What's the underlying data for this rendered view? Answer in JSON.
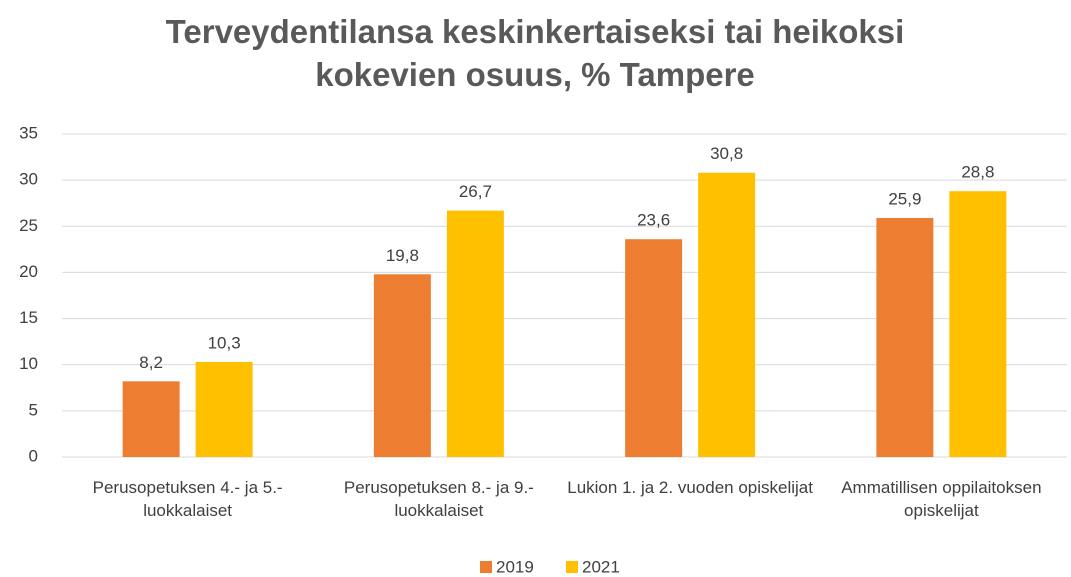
{
  "chart_data": {
    "type": "bar",
    "title": "Terveydentilansa keskinkertaiseksi tai heikoksi kokevien osuus, % Tampere",
    "categories": [
      "Perusopetuksen 4.- ja 5.-luokkalaiset",
      "Perusopetuksen 8.- ja 9.-luokkalaiset",
      "Lukion 1. ja 2. vuoden opiskelijat",
      "Ammatillisen oppilaitoksen opiskelijat"
    ],
    "series": [
      {
        "name": "2019",
        "color": "#ed7d31",
        "values": [
          8.2,
          19.8,
          23.6,
          25.9
        ],
        "value_labels": [
          "8,2",
          "19,8",
          "23,6",
          "25,9"
        ]
      },
      {
        "name": "2021",
        "color": "#ffc000",
        "values": [
          10.3,
          26.7,
          30.8,
          28.8
        ],
        "value_labels": [
          "10,3",
          "26,7",
          "30,8",
          "28,8"
        ]
      }
    ],
    "ylim": [
      0,
      35
    ],
    "yticks": [
      0,
      5,
      10,
      15,
      20,
      25,
      30,
      35
    ],
    "grid": true,
    "legend": "bottom"
  }
}
